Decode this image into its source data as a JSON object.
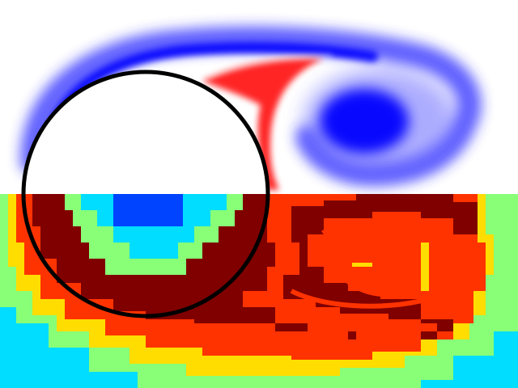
{
  "colors": {
    "background": "#ffffff",
    "vorticity_negative": "#0000ff",
    "vorticity_positive": "#ff0000",
    "cylinder_fill": "#ffffff",
    "cylinder_outline": "#000000",
    "refinement_levels": [
      "#00ddff",
      "#0044ff",
      "#88ff77",
      "#ffdd00",
      "#ff3300",
      "#800000"
    ]
  },
  "icons": {
    "cylinder": "cylinder-obstacle-icon"
  }
}
